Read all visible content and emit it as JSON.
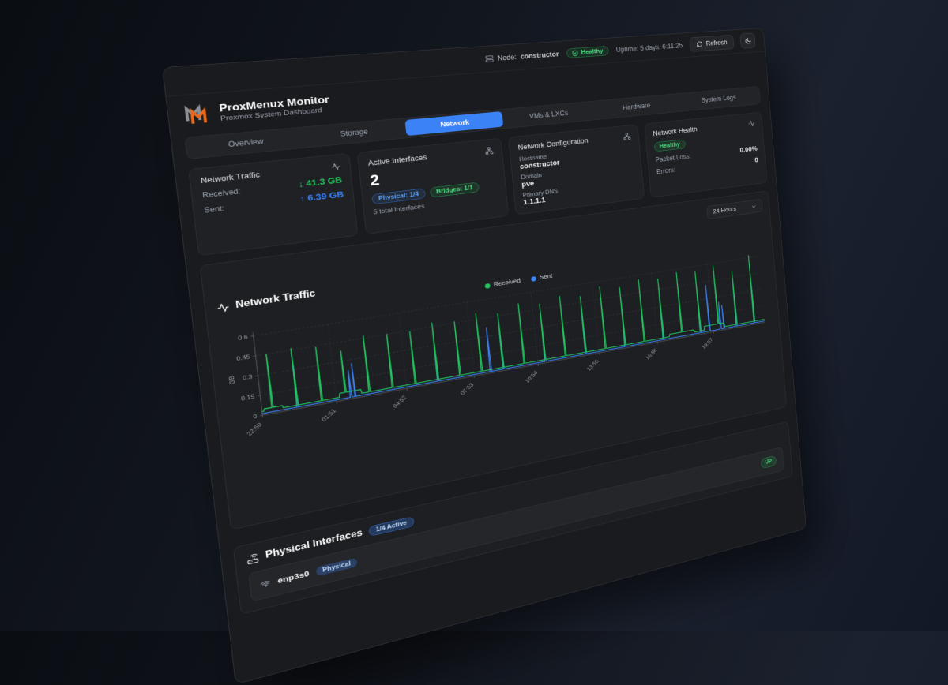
{
  "topbar": {
    "node_label": "Node:",
    "node_value": "constructor",
    "health_badge": "Healthy",
    "uptime": "Uptime: 5 days, 6:11:25",
    "refresh_label": "Refresh"
  },
  "header": {
    "title": "ProxMenux Monitor",
    "subtitle": "Proxmox System Dashboard"
  },
  "tabs": [
    {
      "label": "Overview",
      "active": false
    },
    {
      "label": "Storage",
      "active": false
    },
    {
      "label": "Network",
      "active": true
    },
    {
      "label": "VMs & LXCs",
      "active": false
    },
    {
      "label": "Hardware",
      "active": false
    },
    {
      "label": "System Logs",
      "active": false
    }
  ],
  "cards": {
    "traffic": {
      "title": "Network Traffic",
      "received_label": "Received:",
      "received_arrow": "↓",
      "received_value": "41.3 GB",
      "sent_label": "Sent:",
      "sent_arrow": "↑",
      "sent_value": "6.39 GB"
    },
    "interfaces": {
      "title": "Active Interfaces",
      "count": "2",
      "physical_badge": "Physical: 1/4",
      "bridges_badge": "Bridges: 1/1",
      "total": "5 total interfaces"
    },
    "config": {
      "title": "Network Configuration",
      "hostname_label": "Hostname",
      "hostname": "constructor",
      "domain_label": "Domain",
      "domain": "pve",
      "dns_label": "Primary DNS",
      "dns": "1.1.1.1"
    },
    "health": {
      "title": "Network Health",
      "status": "Healthy",
      "packet_loss_label": "Packet Loss:",
      "packet_loss": "0.00%",
      "errors_label": "Errors:",
      "errors": "0"
    }
  },
  "time_range": {
    "selected": "24 Hours"
  },
  "chart": {
    "title": "Network Traffic"
  },
  "chart_data": {
    "type": "line",
    "title": "Network Traffic",
    "ylabel": "GB",
    "ylim": [
      0,
      0.6
    ],
    "y_ticks": [
      0,
      0.15,
      0.3,
      0.45,
      0.6
    ],
    "x_labels": [
      "22:50",
      "01:51",
      "04:52",
      "07:53",
      "10:54",
      "13:55",
      "16:56",
      "19:57"
    ],
    "x_label_interval_minutes": 181,
    "x_span_minutes": 1440,
    "grid": "dashed",
    "legend_position": "top-center",
    "legend": [
      {
        "name": "Received",
        "color": "#22c55e"
      },
      {
        "name": "Sent",
        "color": "#3b82f6"
      }
    ],
    "series": [
      {
        "name": "Sent",
        "color": "#3b82f6",
        "baseline_gb": 0.012,
        "spikes": [
          [
            85,
            0.42
          ],
          [
            218,
            0.22
          ],
          [
            228,
            0.27
          ],
          [
            445,
            0.3
          ],
          [
            590,
            0.37
          ],
          [
            625,
            0.34
          ],
          [
            745,
            0.3
          ],
          [
            865,
            0.4
          ],
          [
            985,
            0.34
          ],
          [
            1105,
            0.38
          ],
          [
            1225,
            0.34
          ],
          [
            1255,
            0.42
          ],
          [
            1292,
            0.25
          ],
          [
            1302,
            0.22
          ],
          [
            1345,
            0.42
          ],
          [
            1405,
            0.46
          ]
        ],
        "bumps": []
      },
      {
        "name": "Received",
        "color": "#22c55e",
        "baseline_gb": 0.028,
        "spikes": [
          [
            25,
            0.45
          ],
          [
            85,
            0.46
          ],
          [
            145,
            0.44
          ],
          [
            205,
            0.38
          ],
          [
            265,
            0.47
          ],
          [
            325,
            0.45
          ],
          [
            385,
            0.44
          ],
          [
            445,
            0.48
          ],
          [
            505,
            0.46
          ],
          [
            565,
            0.5
          ],
          [
            625,
            0.47
          ],
          [
            685,
            0.52
          ],
          [
            745,
            0.49
          ],
          [
            805,
            0.53
          ],
          [
            865,
            0.5
          ],
          [
            925,
            0.55
          ],
          [
            985,
            0.52
          ],
          [
            1045,
            0.56
          ],
          [
            1105,
            0.54
          ],
          [
            1165,
            0.57
          ],
          [
            1225,
            0.55
          ],
          [
            1285,
            0.58
          ],
          [
            1345,
            0.5
          ],
          [
            1405,
            0.62
          ]
        ],
        "bumps": [
          [
            5,
            50,
            0.045
          ],
          [
            190,
            245,
            0.058
          ],
          [
            1125,
            1205,
            0.048
          ],
          [
            1238,
            1305,
            0.062
          ]
        ]
      }
    ]
  },
  "physical": {
    "title": "Physical Interfaces",
    "active_badge": "1/4 Active",
    "rows": [
      {
        "name": "enp3s0",
        "type_badge": "Physical",
        "status": "UP"
      }
    ]
  },
  "colors": {
    "accent_blue": "#3b82f6",
    "accent_green": "#22c55e",
    "logo_orange": "#e8681c",
    "text_muted": "#9ca3af"
  }
}
